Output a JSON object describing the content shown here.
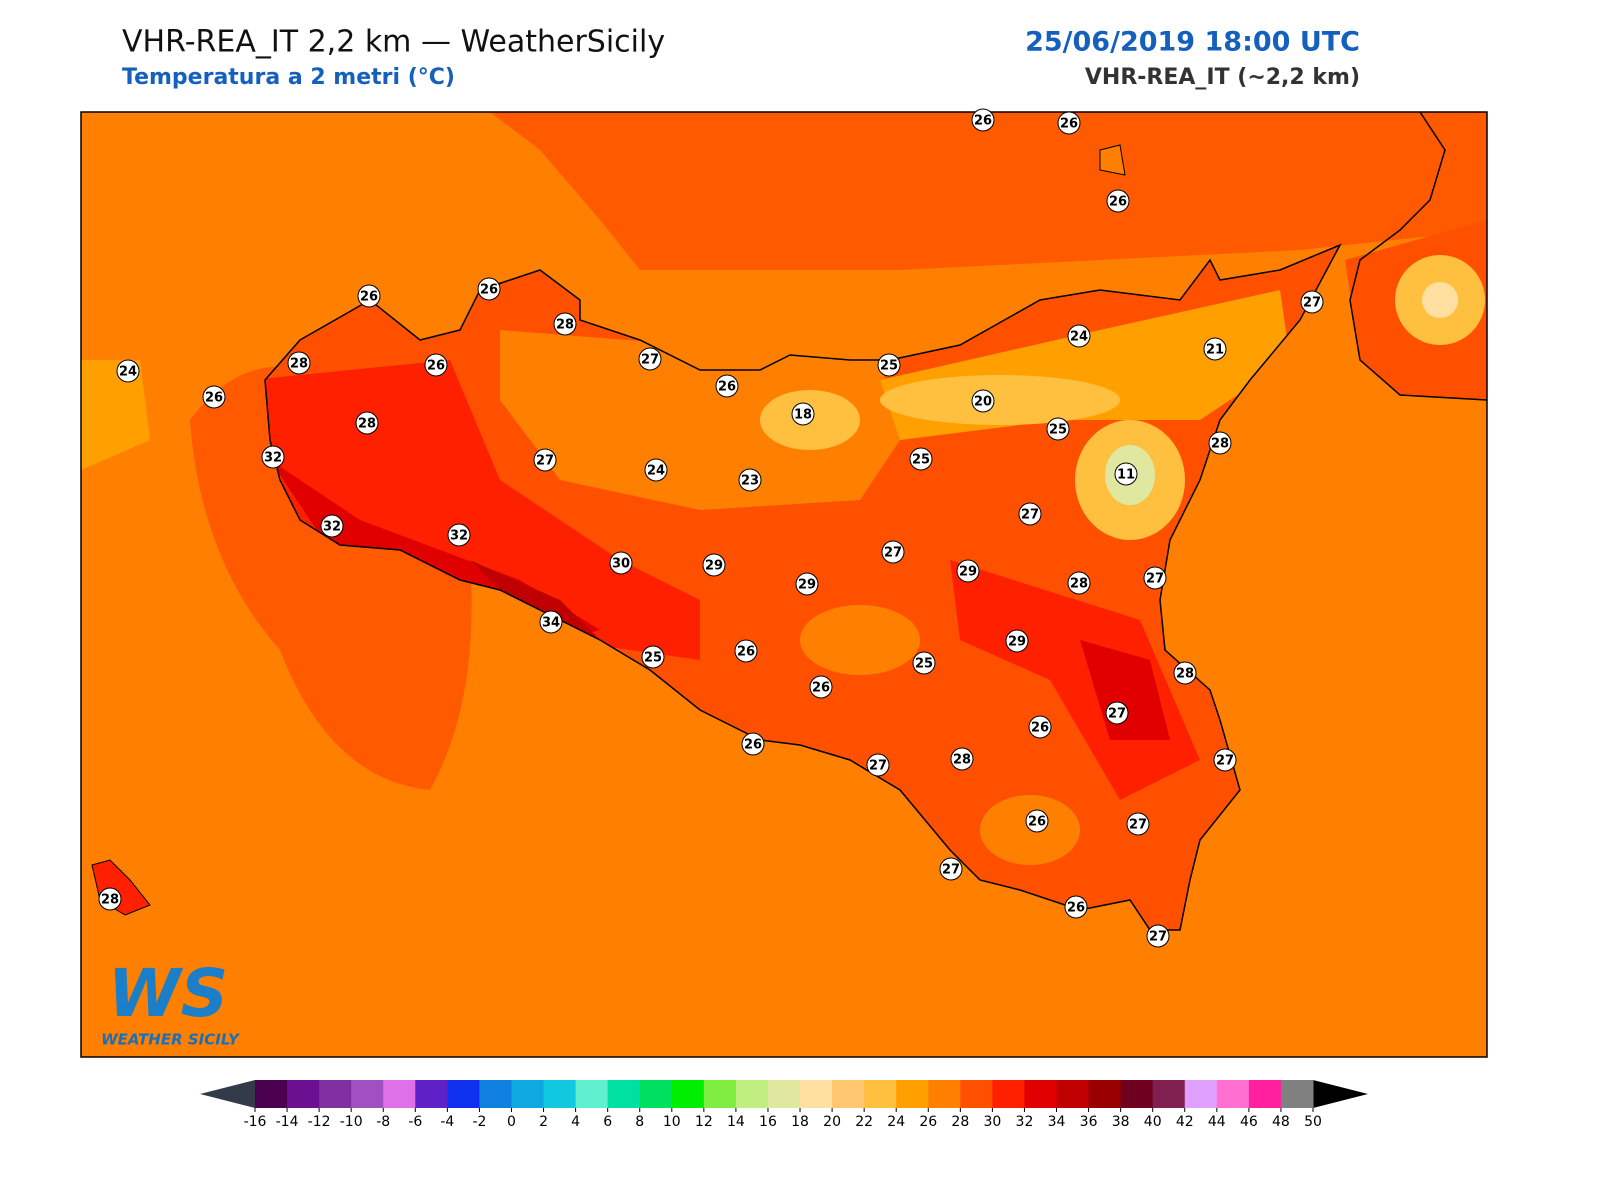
{
  "header": {
    "title": "VHR-REA_IT 2,2 km — WeatherSicily",
    "subtitle": "Temperatura a 2 metri (°C)",
    "date": "25/06/2019 18:00 UTC",
    "model": "VHR-REA_IT (~2,2 km)"
  },
  "stations": [
    26,
    26,
    26,
    26,
    26,
    28,
    27,
    26,
    25,
    24,
    21,
    27,
    24,
    26,
    28,
    26,
    28,
    18,
    20,
    25,
    28,
    11,
    32,
    27,
    24,
    23,
    25,
    27,
    32,
    32,
    30,
    29,
    29,
    27,
    29,
    28,
    27,
    34,
    25,
    26,
    29,
    25,
    26,
    28,
    27,
    26,
    26,
    27,
    28,
    27,
    26,
    27,
    27,
    26,
    27,
    28
  ],
  "colorbar": {
    "ticks": [
      -16,
      -14,
      -12,
      -10,
      -8,
      -6,
      -4,
      -2,
      0,
      2,
      4,
      6,
      8,
      10,
      12,
      14,
      16,
      18,
      20,
      22,
      24,
      26,
      28,
      30,
      32,
      34,
      36,
      38,
      40,
      42,
      44,
      46,
      48,
      50
    ],
    "colors": [
      "#4b0050",
      "#6a1090",
      "#8030a0",
      "#a050c0",
      "#e070e8",
      "#6020c8",
      "#1030f0",
      "#1080e0",
      "#10a8e0",
      "#10c8e0",
      "#60f0d0",
      "#00e0a0",
      "#00e060",
      "#00ee00",
      "#80ee40",
      "#c0ee80",
      "#e0e8a0",
      "#ffe0a0",
      "#ffc870",
      "#ffc040",
      "#ffa000",
      "#ff8000",
      "#ff5000",
      "#ff2000",
      "#e00000",
      "#c00000",
      "#980000",
      "#700020",
      "#802050",
      "#e0a0ff",
      "#ff70d0",
      "#ff20a0",
      "#808080",
      "#404040"
    ],
    "under": "#333a4a",
    "over": "#000000"
  },
  "logo": {
    "mark": "WS",
    "name": "WEATHER SICILY"
  }
}
